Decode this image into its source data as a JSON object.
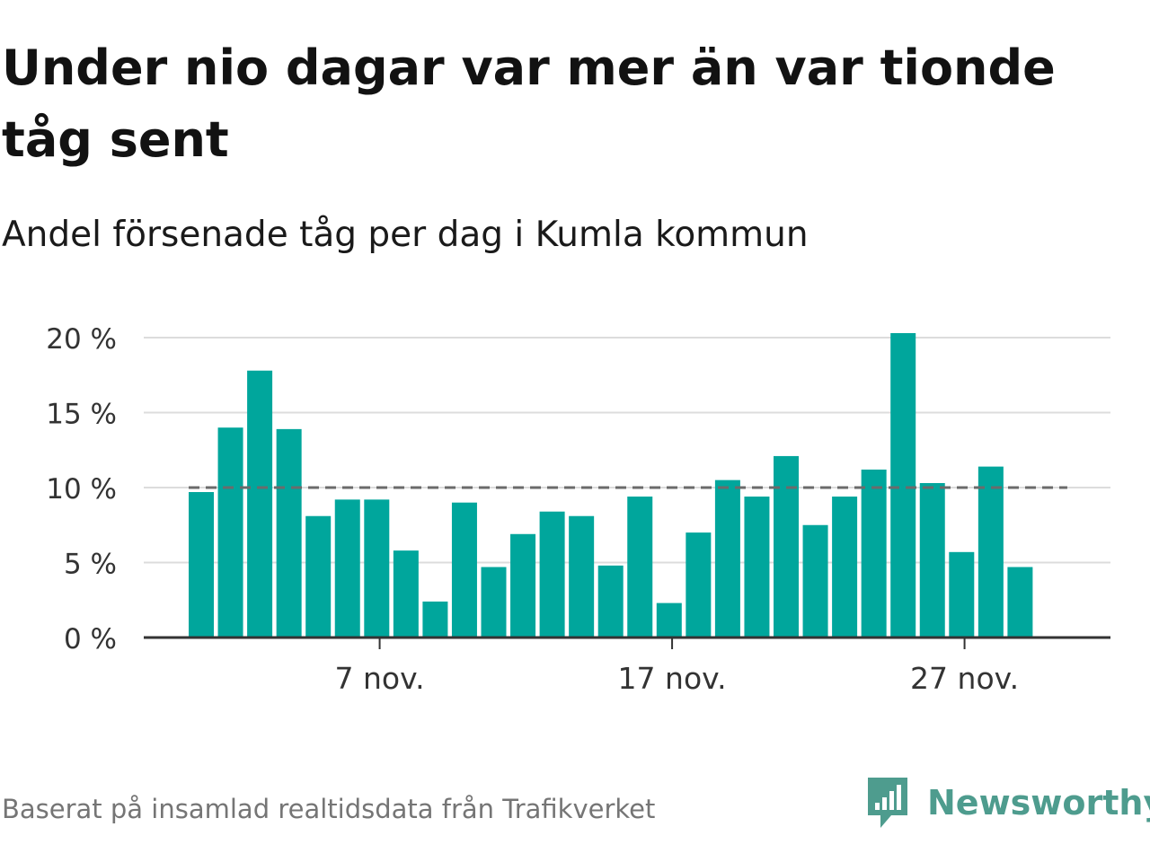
{
  "title": "Under nio dagar var mer än var tionde tåg sent",
  "subtitle": "Andel försenade tåg per dag i Kumla kommun",
  "source": "Baserat på insamlad realtidsdata från Trafikverket",
  "brand": {
    "name": "Newsworthy",
    "icon": "newsworthy-chart-bubble-icon",
    "color": "#4e9c8e"
  },
  "chart_data": {
    "type": "bar",
    "categories": [
      "1 nov.",
      "2 nov.",
      "3 nov.",
      "4 nov.",
      "5 nov.",
      "6 nov.",
      "7 nov.",
      "8 nov.",
      "9 nov.",
      "10 nov.",
      "11 nov.",
      "12 nov.",
      "13 nov.",
      "14 nov.",
      "15 nov.",
      "16 nov.",
      "17 nov.",
      "18 nov.",
      "19 nov.",
      "20 nov.",
      "21 nov.",
      "22 nov.",
      "23 nov.",
      "24 nov.",
      "25 nov.",
      "26 nov.",
      "27 nov.",
      "28 nov.",
      "29 nov."
    ],
    "values": [
      9.7,
      14.0,
      17.8,
      13.9,
      8.1,
      9.2,
      9.2,
      5.8,
      2.4,
      9.0,
      4.7,
      6.9,
      8.4,
      8.1,
      4.8,
      9.4,
      2.3,
      7.0,
      10.5,
      9.4,
      12.1,
      7.5,
      9.4,
      11.2,
      20.3,
      10.3,
      5.7,
      11.4,
      4.7
    ],
    "ylim": [
      0,
      20
    ],
    "yticks": [
      0,
      5,
      10,
      15,
      20
    ],
    "ytick_labels": [
      "0 %",
      "5 %",
      "10 %",
      "15 %",
      "20 %"
    ],
    "xticks": [
      "7 nov.",
      "17 nov.",
      "27 nov."
    ],
    "reference_line": 10,
    "bar_color": "#00a69c",
    "grid": true,
    "legend": "none",
    "xlabel": "",
    "ylabel": ""
  }
}
